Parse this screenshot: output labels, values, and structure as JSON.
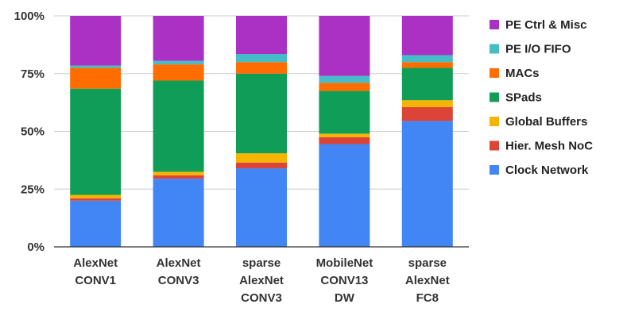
{
  "chart_data": {
    "type": "bar",
    "stacked": true,
    "stack_unit": "percent",
    "categories": [
      [
        "AlexNet",
        "CONV1"
      ],
      [
        "AlexNet",
        "CONV3"
      ],
      [
        "sparse",
        "AlexNet",
        "CONV3"
      ],
      [
        "MobileNet",
        "CONV13",
        "DW"
      ],
      [
        "sparse",
        "AlexNet",
        "FC8"
      ]
    ],
    "series": [
      {
        "name": "Clock Network",
        "color": "#4285F4",
        "values": [
          20,
          29.5,
          34,
          44.5,
          54.5
        ]
      },
      {
        "name": "Hier. Mesh NoC",
        "color": "#DB4437",
        "values": [
          1,
          1.5,
          2.5,
          3,
          6
        ]
      },
      {
        "name": "Global Buffers",
        "color": "#F4B400",
        "values": [
          1.5,
          1.5,
          4,
          1.5,
          3
        ]
      },
      {
        "name": "SPads",
        "color": "#0F9D58",
        "values": [
          46,
          39.5,
          34.5,
          18.5,
          14
        ]
      },
      {
        "name": "MACs",
        "color": "#FF6D00",
        "values": [
          9,
          7,
          5,
          3.5,
          2.5
        ]
      },
      {
        "name": "PE I/O FIFO",
        "color": "#46BDC6",
        "values": [
          1,
          1.5,
          3.5,
          3,
          3
        ]
      },
      {
        "name": "PE Ctrl & Misc",
        "color": "#AB30C4",
        "values": [
          21.5,
          19.5,
          16.5,
          26,
          17
        ]
      }
    ],
    "y_ticks": [
      "0%",
      "25%",
      "50%",
      "75%",
      "100%"
    ],
    "ylim": [
      0,
      100
    ],
    "grid": true,
    "legend_position": "right",
    "legend_order": [
      "PE Ctrl & Misc",
      "PE I/O FIFO",
      "MACs",
      "SPads",
      "Global Buffers",
      "Hier. Mesh NoC",
      "Clock Network"
    ]
  }
}
